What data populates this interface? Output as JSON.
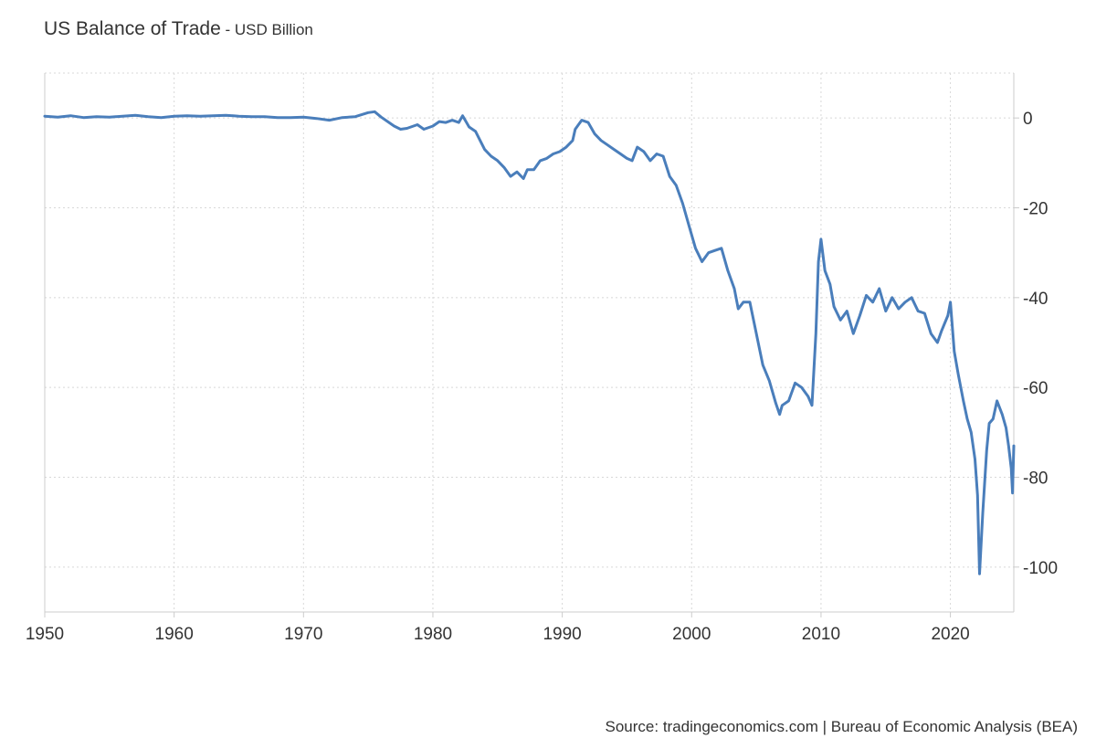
{
  "header": {
    "title": "US Balance of Trade",
    "separator": " - ",
    "subtitle": "USD Billion"
  },
  "footer": {
    "source": "Source: tradingeconomics.com | Bureau of Economic Analysis (BEA)"
  },
  "colors": {
    "line": "#4a7ebb",
    "grid": "#d8d8d8",
    "axis": "#cccccc"
  },
  "chart_data": {
    "type": "line",
    "title": "US Balance of Trade",
    "subtitle": "USD Billion",
    "xlabel": "",
    "ylabel": "",
    "xlim": [
      1950,
      2024.9
    ],
    "ylim": [
      -110,
      10
    ],
    "x_ticks": [
      1950,
      1960,
      1970,
      1980,
      1990,
      2000,
      2010,
      2020
    ],
    "y_ticks": [
      0,
      -20,
      -40,
      -60,
      -80,
      -100
    ],
    "y_tick_labels": [
      "0",
      "-20",
      "-40",
      "-60",
      "-80",
      "-100"
    ],
    "grid": true,
    "legend": "none",
    "y_axis_side": "right",
    "series": [
      {
        "points": [
          [
            1950.0,
            0.4
          ],
          [
            1951.0,
            0.2
          ],
          [
            1952.0,
            0.5
          ],
          [
            1953.0,
            0.1
          ],
          [
            1954.0,
            0.3
          ],
          [
            1955.0,
            0.2
          ],
          [
            1956.0,
            0.4
          ],
          [
            1957.0,
            0.6
          ],
          [
            1958.0,
            0.3
          ],
          [
            1959.0,
            0.1
          ],
          [
            1960.0,
            0.4
          ],
          [
            1961.0,
            0.5
          ],
          [
            1962.0,
            0.4
          ],
          [
            1963.0,
            0.5
          ],
          [
            1964.0,
            0.6
          ],
          [
            1965.0,
            0.4
          ],
          [
            1966.0,
            0.3
          ],
          [
            1967.0,
            0.3
          ],
          [
            1968.0,
            0.1
          ],
          [
            1969.0,
            0.1
          ],
          [
            1970.0,
            0.2
          ],
          [
            1971.0,
            -0.1
          ],
          [
            1972.0,
            -0.5
          ],
          [
            1973.0,
            0.1
          ],
          [
            1974.0,
            0.3
          ],
          [
            1975.0,
            1.2
          ],
          [
            1975.5,
            1.4
          ],
          [
            1976.0,
            0.2
          ],
          [
            1977.0,
            -1.8
          ],
          [
            1977.5,
            -2.5
          ],
          [
            1978.0,
            -2.3
          ],
          [
            1978.8,
            -1.5
          ],
          [
            1979.3,
            -2.5
          ],
          [
            1980.0,
            -1.8
          ],
          [
            1980.5,
            -0.8
          ],
          [
            1981.0,
            -1.0
          ],
          [
            1981.5,
            -0.5
          ],
          [
            1982.0,
            -1.0
          ],
          [
            1982.3,
            0.5
          ],
          [
            1982.8,
            -2.0
          ],
          [
            1983.3,
            -3.0
          ],
          [
            1984.0,
            -7.0
          ],
          [
            1984.5,
            -8.5
          ],
          [
            1985.0,
            -9.5
          ],
          [
            1985.5,
            -11.0
          ],
          [
            1986.0,
            -13.0
          ],
          [
            1986.5,
            -12.0
          ],
          [
            1987.0,
            -13.5
          ],
          [
            1987.3,
            -11.5
          ],
          [
            1987.8,
            -11.5
          ],
          [
            1988.3,
            -9.5
          ],
          [
            1988.8,
            -9.0
          ],
          [
            1989.3,
            -8.0
          ],
          [
            1989.8,
            -7.5
          ],
          [
            1990.3,
            -6.5
          ],
          [
            1990.8,
            -5.0
          ],
          [
            1991.0,
            -2.5
          ],
          [
            1991.5,
            -0.5
          ],
          [
            1992.0,
            -1.0
          ],
          [
            1992.5,
            -3.5
          ],
          [
            1993.0,
            -5.0
          ],
          [
            1993.5,
            -6.0
          ],
          [
            1994.0,
            -7.0
          ],
          [
            1994.5,
            -8.0
          ],
          [
            1995.0,
            -9.0
          ],
          [
            1995.4,
            -9.5
          ],
          [
            1995.8,
            -6.5
          ],
          [
            1996.3,
            -7.5
          ],
          [
            1996.8,
            -9.5
          ],
          [
            1997.3,
            -8.0
          ],
          [
            1997.8,
            -8.5
          ],
          [
            1998.3,
            -13.0
          ],
          [
            1998.8,
            -15.0
          ],
          [
            1999.3,
            -19.0
          ],
          [
            1999.8,
            -24.0
          ],
          [
            2000.3,
            -29.0
          ],
          [
            2000.8,
            -32.0
          ],
          [
            2001.3,
            -30.0
          ],
          [
            2001.8,
            -29.5
          ],
          [
            2002.3,
            -29.0
          ],
          [
            2002.8,
            -34.0
          ],
          [
            2003.3,
            -38.0
          ],
          [
            2003.6,
            -42.5
          ],
          [
            2004.0,
            -41.0
          ],
          [
            2004.5,
            -41.0
          ],
          [
            2005.0,
            -48.0
          ],
          [
            2005.5,
            -55.0
          ],
          [
            2006.0,
            -58.5
          ],
          [
            2006.5,
            -63.5
          ],
          [
            2006.8,
            -66.0
          ],
          [
            2007.0,
            -64.0
          ],
          [
            2007.5,
            -63.0
          ],
          [
            2008.0,
            -59.0
          ],
          [
            2008.5,
            -60.0
          ],
          [
            2009.0,
            -62.0
          ],
          [
            2009.3,
            -64.0
          ],
          [
            2009.6,
            -48.0
          ],
          [
            2009.8,
            -32.0
          ],
          [
            2010.0,
            -27.0
          ],
          [
            2010.3,
            -34.0
          ],
          [
            2010.7,
            -37.0
          ],
          [
            2011.0,
            -42.0
          ],
          [
            2011.5,
            -45.0
          ],
          [
            2012.0,
            -43.0
          ],
          [
            2012.5,
            -48.0
          ],
          [
            2013.0,
            -44.0
          ],
          [
            2013.5,
            -39.5
          ],
          [
            2014.0,
            -41.0
          ],
          [
            2014.5,
            -38.0
          ],
          [
            2015.0,
            -43.0
          ],
          [
            2015.5,
            -40.0
          ],
          [
            2016.0,
            -42.5
          ],
          [
            2016.5,
            -41.0
          ],
          [
            2017.0,
            -40.0
          ],
          [
            2017.5,
            -43.0
          ],
          [
            2018.0,
            -43.5
          ],
          [
            2018.5,
            -48.0
          ],
          [
            2019.0,
            -50.0
          ],
          [
            2019.3,
            -47.5
          ],
          [
            2019.8,
            -44.0
          ],
          [
            2020.0,
            -41.0
          ],
          [
            2020.3,
            -52.0
          ],
          [
            2020.6,
            -57.0
          ],
          [
            2021.0,
            -63.0
          ],
          [
            2021.3,
            -67.0
          ],
          [
            2021.6,
            -70.0
          ],
          [
            2021.9,
            -76.0
          ],
          [
            2022.1,
            -84.0
          ],
          [
            2022.25,
            -101.5
          ],
          [
            2022.5,
            -88.0
          ],
          [
            2022.8,
            -74.0
          ],
          [
            2023.0,
            -68.0
          ],
          [
            2023.3,
            -67.0
          ],
          [
            2023.6,
            -63.0
          ],
          [
            2024.0,
            -66.0
          ],
          [
            2024.3,
            -69.0
          ],
          [
            2024.5,
            -73.0
          ],
          [
            2024.7,
            -78.0
          ],
          [
            2024.8,
            -83.5
          ],
          [
            2024.9,
            -73.0
          ]
        ]
      }
    ]
  }
}
